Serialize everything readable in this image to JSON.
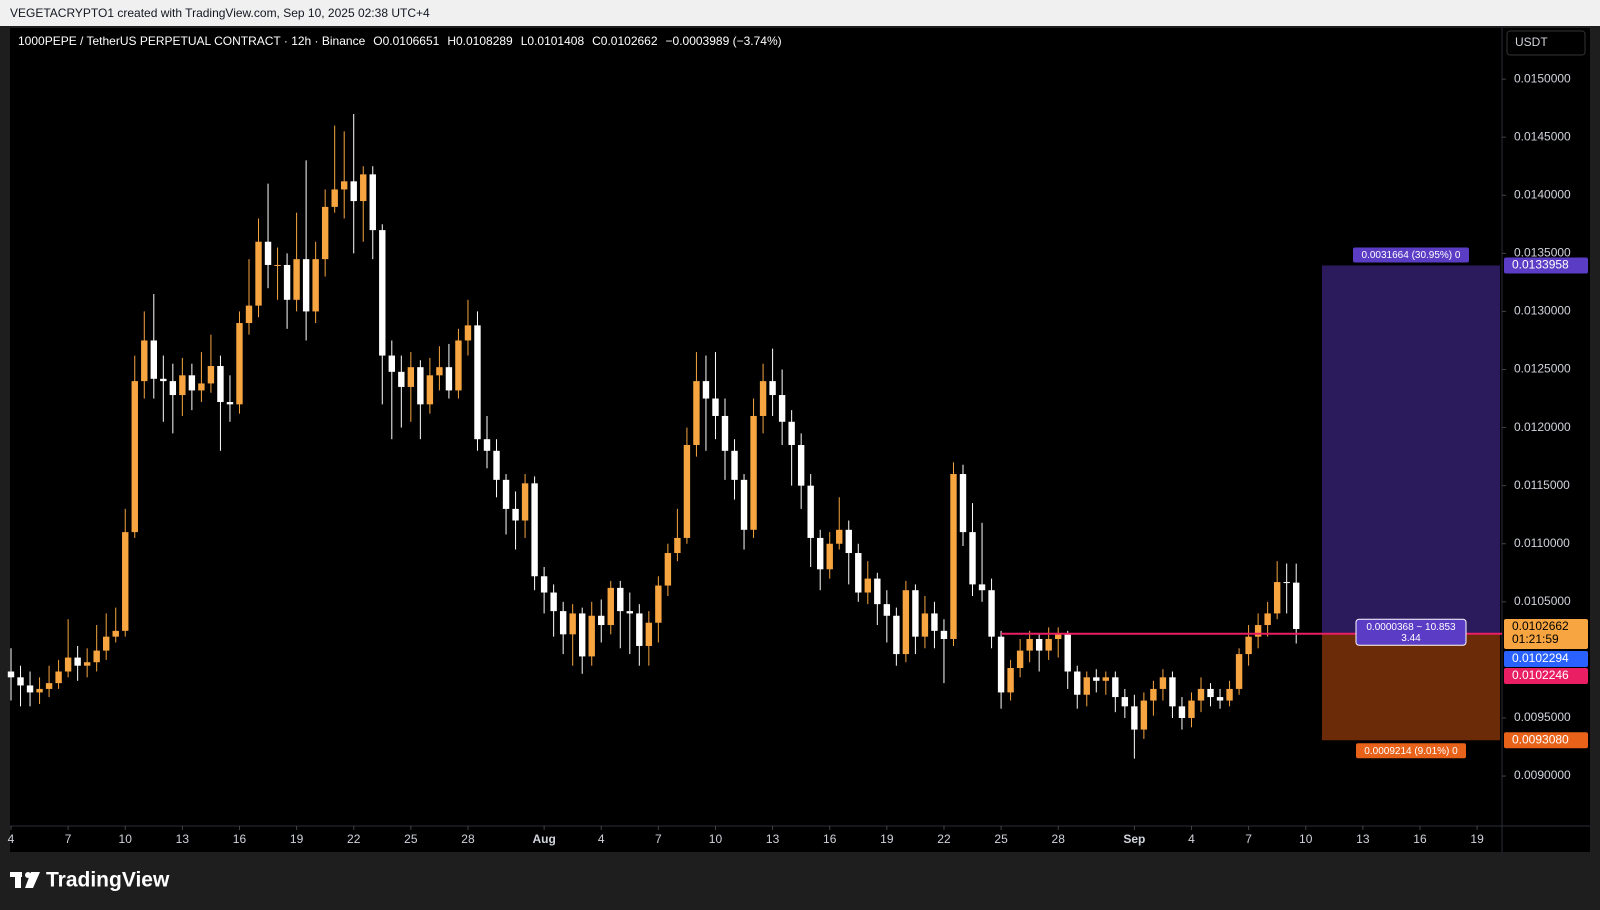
{
  "watermark": "VEGETACRYPTO1 created with TradingView.com, Sep 10, 2025 02:38 UTC+4",
  "footer": {
    "brand": "TradingView"
  },
  "chart_data": {
    "type": "candlestick",
    "title": "1000PEPE / TetherUS PERPETUAL CONTRACT · 12h · Binance",
    "ohlc_text": [
      "O0.0106651",
      "H0.0108289",
      "L0.0101408",
      "C0.0102662",
      "−0.0003989 (−3.74%)"
    ],
    "y_unit": "USDT",
    "up_color": "#f7a540",
    "down_color": "#ffffff",
    "grid": false,
    "x": [
      "Jul 4",
      "Jul 4",
      "Jul 5",
      "Jul 5",
      "Jul 6",
      "Jul 6",
      "Jul 7",
      "Jul 7",
      "Jul 8",
      "Jul 8",
      "Jul 9",
      "Jul 9",
      "Jul 10",
      "Jul 10",
      "Jul 11",
      "Jul 11",
      "Jul 12",
      "Jul 12",
      "Jul 13",
      "Jul 13",
      "Jul 14",
      "Jul 14",
      "Jul 15",
      "Jul 15",
      "Jul 16",
      "Jul 16",
      "Jul 17",
      "Jul 17",
      "Jul 18",
      "Jul 18",
      "Jul 19",
      "Jul 19",
      "Jul 20",
      "Jul 20",
      "Jul 21",
      "Jul 21",
      "Jul 22",
      "Jul 22",
      "Jul 23",
      "Jul 23",
      "Jul 24",
      "Jul 24",
      "Jul 25",
      "Jul 25",
      "Jul 26",
      "Jul 26",
      "Jul 27",
      "Jul 27",
      "Jul 28",
      "Jul 28",
      "Jul 29",
      "Jul 29",
      "Jul 30",
      "Jul 30",
      "Jul 31",
      "Jul 31",
      "Aug 1",
      "Aug 1",
      "Aug 2",
      "Aug 2",
      "Aug 3",
      "Aug 3",
      "Aug 4",
      "Aug 4",
      "Aug 5",
      "Aug 5",
      "Aug 6",
      "Aug 6",
      "Aug 7",
      "Aug 7",
      "Aug 8",
      "Aug 8",
      "Aug 9",
      "Aug 9",
      "Aug 10",
      "Aug 10",
      "Aug 11",
      "Aug 11",
      "Aug 12",
      "Aug 12",
      "Aug 13",
      "Aug 13",
      "Aug 14",
      "Aug 14",
      "Aug 15",
      "Aug 15",
      "Aug 16",
      "Aug 16",
      "Aug 17",
      "Aug 17",
      "Aug 18",
      "Aug 18",
      "Aug 19",
      "Aug 19",
      "Aug 20",
      "Aug 20",
      "Aug 21",
      "Aug 21",
      "Aug 22",
      "Aug 22",
      "Aug 23",
      "Aug 23",
      "Aug 24",
      "Aug 24",
      "Aug 25",
      "Aug 25",
      "Aug 26",
      "Aug 26",
      "Aug 27",
      "Aug 27",
      "Aug 28",
      "Aug 28",
      "Aug 29",
      "Aug 29",
      "Aug 30",
      "Aug 30",
      "Aug 31",
      "Aug 31",
      "Sep 1",
      "Sep 1",
      "Sep 2",
      "Sep 2",
      "Sep 3",
      "Sep 3",
      "Sep 4",
      "Sep 4",
      "Sep 5",
      "Sep 5",
      "Sep 6",
      "Sep 6",
      "Sep 7",
      "Sep 7",
      "Sep 8",
      "Sep 8",
      "Sep 9",
      "Sep 9"
    ],
    "series": [
      {
        "open": [
          0.0099,
          0.00985,
          0.00978,
          0.00972,
          0.00975,
          0.0098,
          0.0099,
          0.01002,
          0.00995,
          0.00998,
          0.01008,
          0.0102,
          0.01025,
          0.0111,
          0.0124,
          0.01275,
          0.01242,
          0.0124,
          0.01228,
          0.01245,
          0.01232,
          0.01238,
          0.01253,
          0.01222,
          0.0122,
          0.0129,
          0.01305,
          0.0136,
          0.0134,
          0.0134,
          0.0131,
          0.01345,
          0.013,
          0.01345,
          0.0139,
          0.01405,
          0.01412,
          0.01395,
          0.01418,
          0.0137,
          0.01262,
          0.01248,
          0.01235,
          0.01252,
          0.0122,
          0.01245,
          0.01252,
          0.01232,
          0.01275,
          0.01288,
          0.0119,
          0.0118,
          0.01155,
          0.0113,
          0.0112,
          0.01152,
          0.01072,
          0.01058,
          0.01042,
          0.01022,
          0.0104,
          0.01003,
          0.01038,
          0.0103,
          0.01062,
          0.01042,
          0.0104,
          0.01012,
          0.01032,
          0.01064,
          0.01092,
          0.01105,
          0.01185,
          0.0124,
          0.01225,
          0.0121,
          0.0118,
          0.01155,
          0.01112,
          0.0121,
          0.0124,
          0.01228,
          0.01205,
          0.01185,
          0.0115,
          0.01105,
          0.01078,
          0.011,
          0.01112,
          0.01092,
          0.01058,
          0.0107,
          0.01048,
          0.01038,
          0.01005,
          0.0106,
          0.0102,
          0.0104,
          0.01025,
          0.01018,
          0.0116,
          0.0111,
          0.01065,
          0.0106,
          0.0102,
          0.00972,
          0.00993,
          0.01008,
          0.01018,
          0.01008,
          0.01018,
          0.01022,
          0.0099,
          0.0097,
          0.00985,
          0.00982,
          0.00985,
          0.00968,
          0.0096,
          0.0094,
          0.00965,
          0.00975,
          0.00985,
          0.0096,
          0.0095,
          0.00965,
          0.00975,
          0.00968,
          0.00965,
          0.00975,
          0.01005,
          0.0102,
          0.0103,
          0.0104,
          0.01067,
          0.0106651
        ],
        "high": [
          0.0101,
          0.00995,
          0.0099,
          0.00985,
          0.00995,
          0.01,
          0.01035,
          0.01012,
          0.0101,
          0.0103,
          0.0104,
          0.01045,
          0.0113,
          0.01262,
          0.013,
          0.01315,
          0.01262,
          0.01255,
          0.0126,
          0.01255,
          0.01265,
          0.0128,
          0.01262,
          0.01245,
          0.013,
          0.01345,
          0.0138,
          0.0141,
          0.01355,
          0.0135,
          0.01385,
          0.0143,
          0.0136,
          0.01405,
          0.0146,
          0.01455,
          0.0147,
          0.01425,
          0.01425,
          0.01375,
          0.01275,
          0.01262,
          0.01265,
          0.01258,
          0.0126,
          0.0127,
          0.01272,
          0.01285,
          0.0131,
          0.013,
          0.0121,
          0.0119,
          0.0116,
          0.01145,
          0.0116,
          0.01158,
          0.0108,
          0.01065,
          0.0105,
          0.01048,
          0.01045,
          0.0105,
          0.01052,
          0.01068,
          0.01068,
          0.01058,
          0.01048,
          0.01042,
          0.01072,
          0.011,
          0.0113,
          0.012,
          0.01265,
          0.01262,
          0.01265,
          0.01225,
          0.0119,
          0.0116,
          0.01225,
          0.01255,
          0.01268,
          0.0125,
          0.01215,
          0.01195,
          0.0116,
          0.01112,
          0.0111,
          0.0114,
          0.0112,
          0.011,
          0.01085,
          0.01075,
          0.0106,
          0.01045,
          0.01068,
          0.01065,
          0.01055,
          0.0105,
          0.01035,
          0.0117,
          0.01168,
          0.01135,
          0.01118,
          0.0107,
          0.01025,
          0.01,
          0.01018,
          0.01025,
          0.01022,
          0.01028,
          0.01028,
          0.01025,
          0.00995,
          0.0099,
          0.00992,
          0.0099,
          0.0099,
          0.00975,
          0.0097,
          0.00972,
          0.00982,
          0.00992,
          0.0099,
          0.00968,
          0.00972,
          0.00985,
          0.0098,
          0.00975,
          0.00982,
          0.0101,
          0.0103,
          0.0104,
          0.0105,
          0.01085,
          0.01083,
          0.0108289
        ],
        "low": [
          0.00965,
          0.0096,
          0.0096,
          0.00962,
          0.00968,
          0.00975,
          0.00985,
          0.00982,
          0.00985,
          0.0099,
          0.01,
          0.01015,
          0.0102,
          0.01105,
          0.01225,
          0.01225,
          0.01205,
          0.01195,
          0.0121,
          0.01215,
          0.01222,
          0.0123,
          0.0118,
          0.01205,
          0.01212,
          0.0128,
          0.01295,
          0.0132,
          0.0131,
          0.01285,
          0.013,
          0.01275,
          0.0129,
          0.0133,
          0.01385,
          0.0138,
          0.0135,
          0.0136,
          0.01345,
          0.0122,
          0.0119,
          0.012,
          0.01205,
          0.0119,
          0.01212,
          0.01232,
          0.01225,
          0.01225,
          0.01262,
          0.0118,
          0.01165,
          0.0114,
          0.01108,
          0.01095,
          0.01105,
          0.0106,
          0.0104,
          0.0102,
          0.01005,
          0.00995,
          0.00988,
          0.00995,
          0.01015,
          0.01022,
          0.0101,
          0.01005,
          0.00995,
          0.00995,
          0.01015,
          0.01055,
          0.01085,
          0.011,
          0.01175,
          0.0118,
          0.0119,
          0.01155,
          0.01138,
          0.01095,
          0.01105,
          0.01195,
          0.0121,
          0.01185,
          0.0115,
          0.0113,
          0.0108,
          0.0106,
          0.0107,
          0.01095,
          0.01065,
          0.0105,
          0.01048,
          0.0103,
          0.01015,
          0.00995,
          0.00998,
          0.01005,
          0.0101,
          0.0101,
          0.0098,
          0.01012,
          0.01098,
          0.01055,
          0.0105,
          0.0101,
          0.00958,
          0.00965,
          0.00985,
          0.00998,
          0.0099,
          0.01,
          0.01002,
          0.00975,
          0.00958,
          0.0096,
          0.00972,
          0.0097,
          0.00955,
          0.0095,
          0.00915,
          0.00932,
          0.00952,
          0.00965,
          0.0095,
          0.0094,
          0.00942,
          0.00955,
          0.0096,
          0.00958,
          0.0096,
          0.0097,
          0.00995,
          0.0101,
          0.0102,
          0.01035,
          0.0104,
          0.0101408
        ],
        "close": [
          0.00985,
          0.00978,
          0.00972,
          0.00975,
          0.0098,
          0.0099,
          0.01002,
          0.00995,
          0.00998,
          0.01008,
          0.0102,
          0.01025,
          0.0111,
          0.0124,
          0.01275,
          0.01242,
          0.0124,
          0.01228,
          0.01245,
          0.01232,
          0.01238,
          0.01253,
          0.01222,
          0.0122,
          0.0129,
          0.01305,
          0.0136,
          0.0134,
          0.0134,
          0.0131,
          0.01345,
          0.013,
          0.01345,
          0.0139,
          0.01405,
          0.01412,
          0.01395,
          0.01418,
          0.0137,
          0.01262,
          0.01248,
          0.01235,
          0.01252,
          0.0122,
          0.01245,
          0.01252,
          0.01232,
          0.01275,
          0.01288,
          0.0119,
          0.0118,
          0.01155,
          0.0113,
          0.0112,
          0.01152,
          0.01072,
          0.01058,
          0.01042,
          0.01022,
          0.0104,
          0.01003,
          0.01038,
          0.0103,
          0.01062,
          0.01042,
          0.0104,
          0.01012,
          0.01032,
          0.01064,
          0.01092,
          0.01105,
          0.01185,
          0.0124,
          0.01225,
          0.0121,
          0.0118,
          0.01155,
          0.01112,
          0.0121,
          0.0124,
          0.01228,
          0.01205,
          0.01185,
          0.0115,
          0.01105,
          0.01078,
          0.011,
          0.01112,
          0.01092,
          0.01058,
          0.0107,
          0.01048,
          0.01038,
          0.01005,
          0.0106,
          0.0102,
          0.0104,
          0.01025,
          0.01018,
          0.0116,
          0.0111,
          0.01065,
          0.0106,
          0.0102,
          0.00972,
          0.00993,
          0.01008,
          0.01018,
          0.01008,
          0.01018,
          0.01022,
          0.0099,
          0.0097,
          0.00985,
          0.00982,
          0.00985,
          0.00968,
          0.0096,
          0.0094,
          0.00965,
          0.00975,
          0.00985,
          0.0096,
          0.0095,
          0.00965,
          0.00975,
          0.00968,
          0.00965,
          0.00975,
          0.01005,
          0.0102,
          0.0103,
          0.0104,
          0.01067,
          0.0106651,
          0.0102662
        ]
      }
    ],
    "ylim": [
      0.00857,
      0.01544
    ],
    "yticks": [
      {
        "value": 0.009,
        "label": "0.0090000"
      },
      {
        "value": 0.0095,
        "label": "0.0095000"
      },
      {
        "value": 0.0105,
        "label": "0.0105000"
      },
      {
        "value": 0.011,
        "label": "0.0110000"
      },
      {
        "value": 0.0115,
        "label": "0.0115000"
      },
      {
        "value": 0.012,
        "label": "0.0120000"
      },
      {
        "value": 0.0125,
        "label": "0.0125000"
      },
      {
        "value": 0.013,
        "label": "0.0130000"
      },
      {
        "value": 0.0135,
        "label": "0.0135000"
      },
      {
        "value": 0.014,
        "label": "0.0140000"
      },
      {
        "value": 0.0145,
        "label": "0.0145000"
      },
      {
        "value": 0.015,
        "label": "0.0150000"
      }
    ],
    "xticks": [
      {
        "value": "Jul 4",
        "label": "4"
      },
      {
        "value": "Jul 7",
        "label": "7"
      },
      {
        "value": "Jul 10",
        "label": "10"
      },
      {
        "value": "Jul 13",
        "label": "13"
      },
      {
        "value": "Jul 16",
        "label": "16"
      },
      {
        "value": "Jul 19",
        "label": "19"
      },
      {
        "value": "Jul 22",
        "label": "22"
      },
      {
        "value": "Jul 25",
        "label": "25"
      },
      {
        "value": "Jul 28",
        "label": "28"
      },
      {
        "value": "Aug 1",
        "label": "Aug"
      },
      {
        "value": "Aug 4",
        "label": "4"
      },
      {
        "value": "Aug 7",
        "label": "7"
      },
      {
        "value": "Aug 10",
        "label": "10"
      },
      {
        "value": "Aug 13",
        "label": "13"
      },
      {
        "value": "Aug 16",
        "label": "16"
      },
      {
        "value": "Aug 19",
        "label": "19"
      },
      {
        "value": "Aug 22",
        "label": "22"
      },
      {
        "value": "Aug 25",
        "label": "25"
      },
      {
        "value": "Aug 28",
        "label": "28"
      },
      {
        "value": "Sep 1",
        "label": "Sep"
      },
      {
        "value": "Sep 4",
        "label": "4"
      },
      {
        "value": "Sep 7",
        "label": "7"
      },
      {
        "value": "Sep 10",
        "label": "10"
      },
      {
        "value": "Sep 13",
        "label": "13"
      },
      {
        "value": "Sep 16",
        "label": "16"
      },
      {
        "value": "Sep 19",
        "label": "19"
      }
    ],
    "last_price_color": "#f7a540",
    "countdown": "01:21:59",
    "price_line": {
      "value": 0.0102246,
      "from": "Aug 25",
      "color": "#e91e63"
    },
    "position": {
      "target": 0.0133958,
      "entry": 0.0102294,
      "stop": {
        "value": 0.009308,
        "label": "0.0093080"
      },
      "profit_color": "#2b1a5c",
      "loss_color": "#6b2a08",
      "target_label_color": "#5b3cc4",
      "entry_color": "#2962ff",
      "stop_label_color": "#e8621a",
      "target_text": "0.0031664 (30.95%) 0",
      "stop_text": "0.0009214 (9.01%) 0",
      "entry_text": [
        "0.0000368 ~ 10.853",
        "3.44"
      ]
    }
  }
}
